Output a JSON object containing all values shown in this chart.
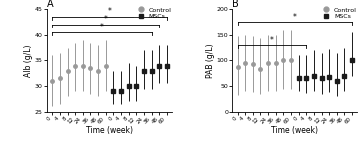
{
  "panel_A": {
    "title": "A",
    "ylabel": "Alb (g/L)",
    "xlabel": "Time (week)",
    "ylim": [
      25,
      45
    ],
    "yticks": [
      25,
      30,
      35,
      40,
      45
    ],
    "n_timepoints": 8,
    "control_mean": [
      31.0,
      31.5,
      33.0,
      34.0,
      34.0,
      33.5,
      33.0,
      34.0
    ],
    "control_err_low": [
      5.0,
      5.0,
      5.0,
      5.0,
      5.0,
      5.0,
      5.0,
      5.0
    ],
    "control_err_high": [
      5.0,
      5.0,
      4.5,
      4.5,
      5.0,
      5.0,
      5.0,
      5.0
    ],
    "mscs_mean": [
      29.0,
      29.0,
      30.0,
      30.0,
      33.0,
      33.0,
      34.0,
      34.0
    ],
    "mscs_err_low": [
      2.5,
      2.5,
      3.0,
      3.0,
      3.5,
      3.5,
      3.5,
      3.5
    ],
    "mscs_err_high": [
      4.0,
      4.0,
      4.5,
      4.0,
      4.0,
      4.0,
      4.0,
      4.0
    ],
    "brackets": [
      {
        "ctrl_idx": 0,
        "mscs_idx": 7,
        "y": 43.5,
        "label": "*"
      },
      {
        "ctrl_idx": 0,
        "mscs_idx": 6,
        "y": 42.0,
        "label": "*"
      },
      {
        "ctrl_idx": 0,
        "mscs_idx": 5,
        "y": 40.5,
        "label": "*"
      }
    ]
  },
  "panel_B": {
    "title": "B",
    "ylabel": "PAB (g/L)",
    "xlabel": "Time (week)",
    "ylim": [
      0,
      200
    ],
    "yticks": [
      0,
      50,
      100,
      150,
      200
    ],
    "n_timepoints": 8,
    "control_mean": [
      87.0,
      95.0,
      93.0,
      84.0,
      95.0,
      95.0,
      100.0,
      100.0
    ],
    "control_err_low": [
      55.0,
      55.0,
      55.0,
      50.0,
      55.0,
      55.0,
      55.0,
      55.0
    ],
    "control_err_high": [
      60.0,
      55.0,
      55.0,
      60.0,
      55.0,
      55.0,
      60.0,
      60.0
    ],
    "mscs_mean": [
      65.0,
      65.0,
      70.0,
      65.0,
      68.0,
      60.0,
      70.0,
      100.0
    ],
    "mscs_err_low": [
      25.0,
      28.0,
      30.0,
      30.0,
      30.0,
      30.0,
      30.0,
      30.0
    ],
    "mscs_err_high": [
      45.0,
      45.0,
      50.0,
      50.0,
      55.0,
      55.0,
      55.0,
      55.0
    ],
    "brackets": [
      {
        "ctrl_idx": 0,
        "mscs_idx": 7,
        "y": 175,
        "label": "*"
      },
      {
        "ctrl_idx": 0,
        "mscs_idx": 1,
        "y": 130,
        "label": "*"
      }
    ]
  },
  "legend": {
    "control_label": "Control",
    "mscs_label": "MSCs",
    "control_color": "#999999",
    "mscs_color": "#1a1a1a"
  },
  "x_ticklabels": [
    "0",
    "4",
    "8",
    "12",
    "24",
    "36",
    "48",
    "60"
  ],
  "figsize": [
    3.61,
    1.55
  ],
  "dpi": 100
}
